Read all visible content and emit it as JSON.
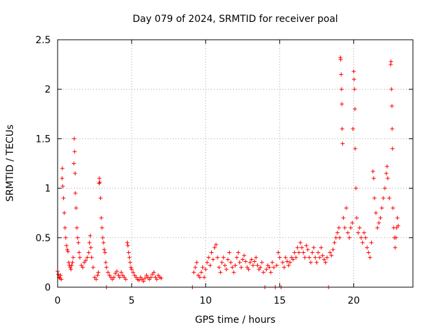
{
  "chart_data": {
    "type": "scatter",
    "title": "Day 079 of 2024, SRMTID for receiver poal",
    "xlabel": "GPS time / hours",
    "ylabel": "SRMTID / TECUs",
    "xlim": [
      0,
      24
    ],
    "ylim": [
      0,
      2.5
    ],
    "xticks": [
      0,
      5,
      10,
      15,
      20
    ],
    "yticks": [
      0,
      0.5,
      1,
      1.5,
      2,
      2.5
    ],
    "xtick_labels": [
      "0",
      "5",
      "10",
      "15",
      "20"
    ],
    "ytick_labels": [
      "0",
      "0.5",
      "1",
      "1.5",
      "2",
      "2.5"
    ],
    "grid": true,
    "marker": "+",
    "series": [
      {
        "name": "SRMTID",
        "color": "#ff0000",
        "points": [
          [
            0.0,
            0.16
          ],
          [
            0.05,
            0.13
          ],
          [
            0.1,
            0.1
          ],
          [
            0.15,
            0.09
          ],
          [
            0.2,
            0.12
          ],
          [
            0.25,
            0.08
          ],
          [
            0.3,
            1.1
          ],
          [
            0.32,
            1.2
          ],
          [
            0.35,
            1.02
          ],
          [
            0.4,
            0.9
          ],
          [
            0.45,
            0.75
          ],
          [
            0.5,
            0.6
          ],
          [
            0.55,
            0.5
          ],
          [
            0.6,
            0.42
          ],
          [
            0.65,
            0.38
          ],
          [
            0.7,
            0.36
          ],
          [
            0.75,
            0.25
          ],
          [
            0.8,
            0.22
          ],
          [
            0.85,
            0.2
          ],
          [
            0.9,
            0.18
          ],
          [
            0.95,
            0.22
          ],
          [
            1.0,
            0.25
          ],
          [
            1.05,
            0.3
          ],
          [
            1.1,
            1.25
          ],
          [
            1.12,
            1.5
          ],
          [
            1.15,
            1.37
          ],
          [
            1.18,
            1.15
          ],
          [
            1.2,
            0.95
          ],
          [
            1.25,
            0.8
          ],
          [
            1.3,
            0.6
          ],
          [
            1.35,
            0.5
          ],
          [
            1.4,
            0.45
          ],
          [
            1.45,
            0.35
          ],
          [
            1.5,
            0.3
          ],
          [
            1.6,
            0.22
          ],
          [
            1.7,
            0.2
          ],
          [
            1.8,
            0.25
          ],
          [
            1.9,
            0.27
          ],
          [
            2.0,
            0.3
          ],
          [
            2.1,
            0.35
          ],
          [
            2.15,
            0.45
          ],
          [
            2.2,
            0.52
          ],
          [
            2.25,
            0.4
          ],
          [
            2.3,
            0.3
          ],
          [
            2.4,
            0.2
          ],
          [
            2.5,
            0.1
          ],
          [
            2.6,
            0.08
          ],
          [
            2.7,
            0.12
          ],
          [
            2.75,
            0.15
          ],
          [
            2.8,
            1.05
          ],
          [
            2.82,
            1.1
          ],
          [
            2.85,
            1.06
          ],
          [
            2.9,
            0.9
          ],
          [
            2.95,
            0.7
          ],
          [
            3.0,
            0.6
          ],
          [
            3.05,
            0.5
          ],
          [
            3.1,
            0.45
          ],
          [
            3.15,
            0.38
          ],
          [
            3.2,
            0.35
          ],
          [
            3.25,
            0.25
          ],
          [
            3.3,
            0.2
          ],
          [
            3.3,
            0.0
          ],
          [
            3.4,
            0.15
          ],
          [
            3.5,
            0.12
          ],
          [
            3.6,
            0.1
          ],
          [
            3.7,
            0.08
          ],
          [
            3.8,
            0.1
          ],
          [
            3.9,
            0.14
          ],
          [
            4.0,
            0.16
          ],
          [
            4.1,
            0.12
          ],
          [
            4.2,
            0.1
          ],
          [
            4.3,
            0.15
          ],
          [
            4.4,
            0.12
          ],
          [
            4.5,
            0.1
          ],
          [
            4.6,
            0.08
          ],
          [
            4.7,
            0.45
          ],
          [
            4.75,
            0.42
          ],
          [
            4.8,
            0.35
          ],
          [
            4.85,
            0.3
          ],
          [
            4.9,
            0.25
          ],
          [
            4.95,
            0.2
          ],
          [
            5.0,
            0.18
          ],
          [
            5.1,
            0.15
          ],
          [
            5.2,
            0.12
          ],
          [
            5.3,
            0.1
          ],
          [
            5.4,
            0.08
          ],
          [
            5.5,
            0.07
          ],
          [
            5.6,
            0.1
          ],
          [
            5.7,
            0.08
          ],
          [
            5.8,
            0.06
          ],
          [
            5.9,
            0.09
          ],
          [
            6.0,
            0.12
          ],
          [
            6.1,
            0.1
          ],
          [
            6.2,
            0.08
          ],
          [
            6.3,
            0.1
          ],
          [
            6.4,
            0.13
          ],
          [
            6.5,
            0.15
          ],
          [
            6.6,
            0.1
          ],
          [
            6.7,
            0.08
          ],
          [
            6.8,
            0.12
          ],
          [
            6.9,
            0.1
          ],
          [
            7.0,
            0.09
          ],
          [
            9.1,
            0.0
          ],
          [
            9.2,
            0.15
          ],
          [
            9.3,
            0.2
          ],
          [
            9.4,
            0.25
          ],
          [
            9.5,
            0.12
          ],
          [
            9.6,
            0.1
          ],
          [
            9.7,
            0.15
          ],
          [
            9.8,
            0.2
          ],
          [
            9.9,
            0.1
          ],
          [
            10.0,
            0.18
          ],
          [
            10.1,
            0.25
          ],
          [
            10.2,
            0.3
          ],
          [
            10.3,
            0.22
          ],
          [
            10.4,
            0.35
          ],
          [
            10.5,
            0.28
          ],
          [
            10.6,
            0.4
          ],
          [
            10.7,
            0.43
          ],
          [
            10.8,
            0.3
          ],
          [
            10.9,
            0.2
          ],
          [
            11.0,
            0.15
          ],
          [
            11.1,
            0.25
          ],
          [
            11.2,
            0.3
          ],
          [
            11.3,
            0.22
          ],
          [
            11.4,
            0.18
          ],
          [
            11.5,
            0.28
          ],
          [
            11.6,
            0.35
          ],
          [
            11.7,
            0.25
          ],
          [
            11.8,
            0.2
          ],
          [
            11.9,
            0.15
          ],
          [
            12.0,
            0.22
          ],
          [
            12.1,
            0.3
          ],
          [
            12.2,
            0.35
          ],
          [
            12.3,
            0.25
          ],
          [
            12.4,
            0.2
          ],
          [
            12.5,
            0.28
          ],
          [
            12.6,
            0.32
          ],
          [
            12.7,
            0.26
          ],
          [
            12.8,
            0.2
          ],
          [
            12.9,
            0.18
          ],
          [
            13.0,
            0.25
          ],
          [
            13.1,
            0.28
          ],
          [
            13.2,
            0.22
          ],
          [
            13.3,
            0.26
          ],
          [
            13.4,
            0.3
          ],
          [
            13.5,
            0.22
          ],
          [
            13.6,
            0.18
          ],
          [
            13.7,
            0.2
          ],
          [
            13.8,
            0.25
          ],
          [
            13.9,
            0.15
          ],
          [
            14.0,
            0.0
          ],
          [
            14.1,
            0.18
          ],
          [
            14.2,
            0.22
          ],
          [
            14.3,
            0.2
          ],
          [
            14.4,
            0.15
          ],
          [
            14.5,
            0.25
          ],
          [
            14.6,
            0.2
          ],
          [
            14.7,
            0.0
          ],
          [
            14.8,
            0.22
          ],
          [
            14.9,
            0.35
          ],
          [
            15.0,
            0.3
          ],
          [
            15.1,
            0.0
          ],
          [
            15.2,
            0.25
          ],
          [
            15.3,
            0.2
          ],
          [
            15.4,
            0.3
          ],
          [
            15.5,
            0.26
          ],
          [
            15.6,
            0.22
          ],
          [
            15.7,
            0.25
          ],
          [
            15.8,
            0.3
          ],
          [
            15.9,
            0.28
          ],
          [
            16.0,
            0.35
          ],
          [
            16.1,
            0.3
          ],
          [
            16.2,
            0.4
          ],
          [
            16.3,
            0.35
          ],
          [
            16.4,
            0.45
          ],
          [
            16.5,
            0.4
          ],
          [
            16.6,
            0.35
          ],
          [
            16.7,
            0.3
          ],
          [
            16.8,
            0.42
          ],
          [
            16.9,
            0.38
          ],
          [
            17.0,
            0.3
          ],
          [
            17.1,
            0.25
          ],
          [
            17.2,
            0.35
          ],
          [
            17.3,
            0.4
          ],
          [
            17.4,
            0.3
          ],
          [
            17.5,
            0.25
          ],
          [
            17.6,
            0.35
          ],
          [
            17.7,
            0.3
          ],
          [
            17.8,
            0.4
          ],
          [
            17.9,
            0.32
          ],
          [
            18.0,
            0.28
          ],
          [
            18.1,
            0.25
          ],
          [
            18.2,
            0.3
          ],
          [
            18.3,
            0.0
          ],
          [
            18.4,
            0.35
          ],
          [
            18.5,
            0.32
          ],
          [
            18.6,
            0.38
          ],
          [
            18.7,
            0.45
          ],
          [
            18.8,
            0.5
          ],
          [
            18.9,
            0.55
          ],
          [
            19.0,
            0.6
          ],
          [
            19.05,
            0.5
          ],
          [
            19.1,
            2.32
          ],
          [
            19.12,
            2.3
          ],
          [
            19.15,
            2.15
          ],
          [
            19.18,
            2.0
          ],
          [
            19.2,
            1.85
          ],
          [
            19.22,
            1.6
          ],
          [
            19.25,
            1.45
          ],
          [
            19.3,
            0.7
          ],
          [
            19.4,
            0.6
          ],
          [
            19.5,
            0.8
          ],
          [
            19.6,
            0.55
          ],
          [
            19.7,
            0.5
          ],
          [
            19.8,
            0.6
          ],
          [
            19.9,
            0.65
          ],
          [
            19.95,
            1.6
          ],
          [
            20.0,
            2.18
          ],
          [
            20.02,
            2.1
          ],
          [
            20.05,
            2.0
          ],
          [
            20.08,
            1.8
          ],
          [
            20.1,
            1.4
          ],
          [
            20.15,
            1.0
          ],
          [
            20.2,
            0.7
          ],
          [
            20.3,
            0.55
          ],
          [
            20.4,
            0.6
          ],
          [
            20.5,
            0.5
          ],
          [
            20.6,
            0.45
          ],
          [
            20.7,
            0.55
          ],
          [
            20.8,
            0.5
          ],
          [
            20.9,
            0.4
          ],
          [
            21.0,
            0.35
          ],
          [
            21.1,
            0.3
          ],
          [
            21.2,
            0.45
          ],
          [
            21.3,
            1.17
          ],
          [
            21.35,
            1.1
          ],
          [
            21.4,
            0.9
          ],
          [
            21.5,
            0.75
          ],
          [
            21.6,
            0.6
          ],
          [
            21.7,
            0.65
          ],
          [
            21.8,
            0.7
          ],
          [
            21.9,
            0.8
          ],
          [
            22.0,
            0.9
          ],
          [
            22.1,
            1.0
          ],
          [
            22.2,
            1.15
          ],
          [
            22.25,
            1.22
          ],
          [
            22.3,
            1.1
          ],
          [
            22.4,
            0.9
          ],
          [
            22.5,
            2.25
          ],
          [
            22.52,
            2.28
          ],
          [
            22.55,
            2.0
          ],
          [
            22.58,
            1.83
          ],
          [
            22.6,
            1.6
          ],
          [
            22.62,
            1.4
          ],
          [
            22.65,
            0.8
          ],
          [
            22.7,
            0.6
          ],
          [
            22.75,
            0.5
          ],
          [
            22.8,
            0.4
          ],
          [
            22.85,
            0.5
          ],
          [
            22.9,
            0.6
          ],
          [
            22.95,
            0.7
          ],
          [
            23.0,
            0.62
          ]
        ]
      }
    ]
  }
}
